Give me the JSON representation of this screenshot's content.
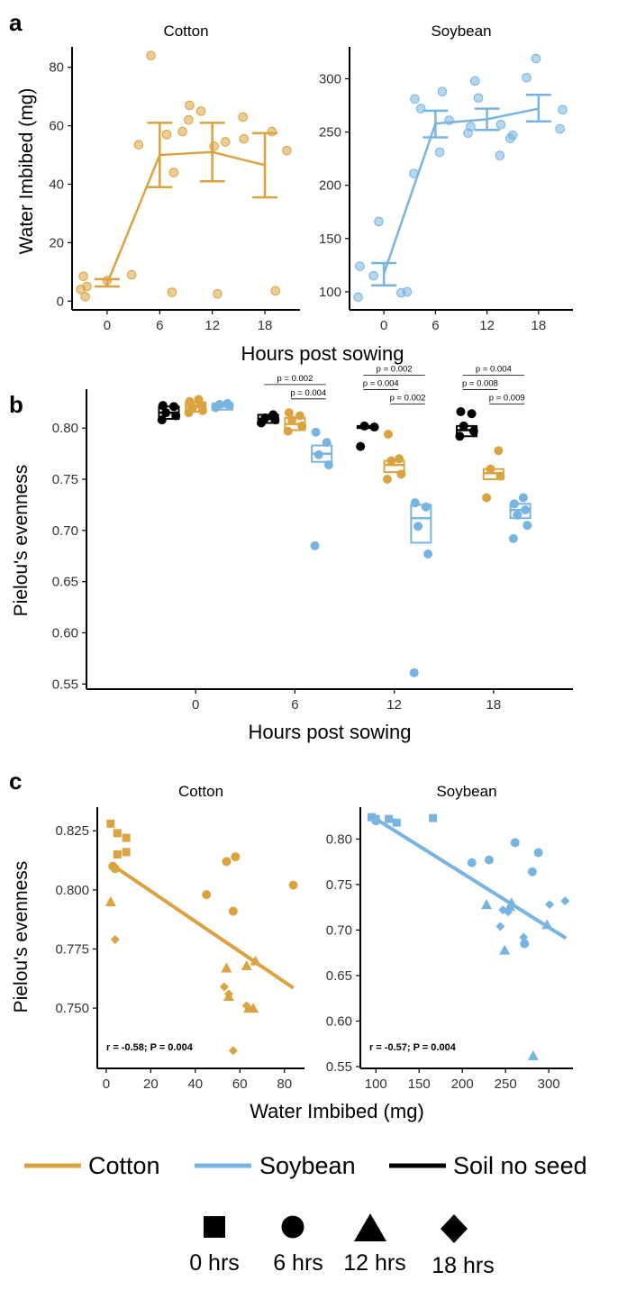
{
  "colors": {
    "cotton": "#dba240",
    "soybean": "#78b4e0",
    "soil": "#000000"
  },
  "panels": {
    "a": {
      "label": "a",
      "xlabel": "Hours post sowing",
      "ylabel": "Water Imbibed (mg)"
    },
    "b": {
      "label": "b",
      "xlabel": "Hours post sowing",
      "ylabel": "Pielou's evenness"
    },
    "c": {
      "label": "c",
      "xlabel": "Water Imbibed (mg)",
      "ylabel": "Pielou's evenness"
    }
  },
  "legend": {
    "lines": [
      {
        "label": "Cotton",
        "color": "#dba240"
      },
      {
        "label": "Soybean",
        "color": "#78b4e0"
      },
      {
        "label": "Soil no seed",
        "color": "#000000"
      }
    ],
    "shapes": [
      {
        "label": "0 hrs",
        "shape": "square"
      },
      {
        "label": "6 hrs",
        "shape": "circle"
      },
      {
        "label": "12 hrs",
        "shape": "triangle"
      },
      {
        "label": "18 hrs",
        "shape": "diamond"
      }
    ]
  },
  "chart_data": [
    {
      "id": "a-cotton",
      "panel": "a",
      "type": "line",
      "title": "Cotton",
      "xlim": [
        -4,
        22
      ],
      "ylim": [
        -3,
        87
      ],
      "xticks": [
        0,
        6,
        12,
        18
      ],
      "yticks": [
        0,
        20,
        40,
        60,
        80
      ],
      "series": [
        {
          "color": "#dba240",
          "mean": [
            [
              0,
              6.0
            ],
            [
              6,
              50.0
            ],
            [
              12,
              51.0
            ],
            [
              18,
              46.5
            ]
          ],
          "error": [
            [
              0,
              5.0,
              7.5
            ],
            [
              6,
              39.0,
              61.0
            ],
            [
              12,
              41.0,
              61.0
            ],
            [
              18,
              35.5,
              57.5
            ]
          ],
          "points": [
            [
              -3.0,
              4.0
            ],
            [
              -2.7,
              8.5
            ],
            [
              -2.5,
              1.5
            ],
            [
              -2.3,
              5.0
            ],
            [
              0.0,
              7.0
            ],
            [
              2.8,
              9.0
            ],
            [
              3.6,
              53.5
            ],
            [
              5.0,
              84.0
            ],
            [
              6.8,
              57.0
            ],
            [
              7.4,
              3.0
            ],
            [
              7.6,
              44.0
            ],
            [
              8.6,
              58.0
            ],
            [
              9.3,
              62.0
            ],
            [
              9.4,
              67.0
            ],
            [
              10.7,
              65.0
            ],
            [
              12.2,
              53.0
            ],
            [
              12.6,
              2.5
            ],
            [
              13.5,
              54.5
            ],
            [
              15.5,
              63.0
            ],
            [
              15.6,
              55.5
            ],
            [
              18.8,
              58.0
            ],
            [
              19.2,
              3.5
            ],
            [
              20.5,
              51.5
            ]
          ]
        }
      ]
    },
    {
      "id": "a-soybean",
      "panel": "a",
      "type": "line",
      "title": "Soybean",
      "xlim": [
        -4,
        22
      ],
      "ylim": [
        83,
        330
      ],
      "xticks": [
        0,
        6,
        12,
        18
      ],
      "yticks": [
        100,
        150,
        200,
        250,
        300
      ],
      "series": [
        {
          "color": "#78b4e0",
          "mean": [
            [
              0,
              117
            ],
            [
              6,
              258
            ],
            [
              12,
              262
            ],
            [
              18,
              272
            ]
          ],
          "error": [
            [
              0,
              106,
              127
            ],
            [
              6,
              245,
              270
            ],
            [
              12,
              252,
              272
            ],
            [
              18,
              260,
              285
            ]
          ],
          "points": [
            [
              -3.0,
              95
            ],
            [
              -2.8,
              124
            ],
            [
              -1.2,
              115
            ],
            [
              -0.6,
              166
            ],
            [
              2.0,
              99
            ],
            [
              2.7,
              100
            ],
            [
              3.5,
              211
            ],
            [
              3.6,
              281
            ],
            [
              4.3,
              272
            ],
            [
              6.5,
              231
            ],
            [
              6.8,
              288
            ],
            [
              7.6,
              261
            ],
            [
              9.8,
              249
            ],
            [
              10.1,
              255
            ],
            [
              10.6,
              298
            ],
            [
              11.0,
              282
            ],
            [
              13.5,
              228
            ],
            [
              13.6,
              257
            ],
            [
              14.7,
              244
            ],
            [
              15.0,
              247
            ],
            [
              16.6,
              301
            ],
            [
              17.7,
              319
            ],
            [
              20.5,
              253
            ],
            [
              20.8,
              271
            ]
          ]
        }
      ]
    },
    {
      "id": "b",
      "panel": "b",
      "type": "box",
      "xlim": [
        -1.1,
        3.8
      ],
      "ylim": [
        0.545,
        0.838
      ],
      "categories": [
        "0",
        "6",
        "12",
        "18"
      ],
      "yticks": [
        0.55,
        0.6,
        0.65,
        0.7,
        0.75,
        0.8
      ],
      "ytick_labels": [
        "0.55",
        "0.60",
        "0.65",
        "0.70",
        "0.75",
        "0.80"
      ],
      "groups": [
        {
          "x": 0,
          "series": "Soil no seed",
          "color": "#000000",
          "q1": 0.809,
          "median": 0.815,
          "q3": 0.821,
          "points": [
            0.808,
            0.812,
            0.815,
            0.821,
            0.822
          ]
        },
        {
          "x": 0,
          "series": "Cotton",
          "color": "#dba240",
          "q1": 0.816,
          "median": 0.821,
          "q3": 0.825,
          "points": [
            0.815,
            0.817,
            0.82,
            0.823,
            0.826,
            0.828
          ]
        },
        {
          "x": 0,
          "series": "Soybean",
          "color": "#78b4e0",
          "q1": 0.818,
          "median": 0.821,
          "q3": 0.824,
          "points": [
            0.82,
            0.822,
            0.823,
            0.824
          ]
        },
        {
          "x": 1,
          "series": "Soil no seed",
          "color": "#000000",
          "q1": 0.805,
          "median": 0.809,
          "q3": 0.813,
          "points": [
            0.805,
            0.808,
            0.81,
            0.813
          ]
        },
        {
          "x": 1,
          "series": "Cotton",
          "color": "#dba240",
          "q1": 0.798,
          "median": 0.804,
          "q3": 0.81,
          "points": [
            0.797,
            0.802,
            0.808,
            0.812,
            0.815
          ]
        },
        {
          "x": 1,
          "series": "Soybean",
          "color": "#78b4e0",
          "q1": 0.767,
          "median": 0.775,
          "q3": 0.783,
          "points": [
            0.685,
            0.764,
            0.774,
            0.786,
            0.796
          ]
        },
        {
          "x": 2,
          "series": "Soil no seed",
          "color": "#000000",
          "q1": 0.8,
          "median": 0.801,
          "q3": 0.802,
          "points": [
            0.782,
            0.801,
            0.802
          ]
        },
        {
          "x": 2,
          "series": "Cotton",
          "color": "#dba240",
          "q1": 0.757,
          "median": 0.764,
          "q3": 0.768,
          "points": [
            0.75,
            0.755,
            0.768,
            0.77,
            0.794
          ]
        },
        {
          "x": 2,
          "series": "Soybean",
          "color": "#78b4e0",
          "q1": 0.688,
          "median": 0.712,
          "q3": 0.725,
          "points": [
            0.561,
            0.677,
            0.704,
            0.723,
            0.727
          ]
        },
        {
          "x": 3,
          "series": "Soil no seed",
          "color": "#000000",
          "q1": 0.792,
          "median": 0.798,
          "q3": 0.802,
          "points": [
            0.792,
            0.797,
            0.802,
            0.814,
            0.816
          ]
        },
        {
          "x": 3,
          "series": "Cotton",
          "color": "#dba240",
          "q1": 0.75,
          "median": 0.756,
          "q3": 0.76,
          "points": [
            0.732,
            0.753,
            0.76,
            0.778
          ]
        },
        {
          "x": 3,
          "series": "Soybean",
          "color": "#78b4e0",
          "q1": 0.712,
          "median": 0.72,
          "q3": 0.726,
          "points": [
            0.692,
            0.705,
            0.715,
            0.72,
            0.726,
            0.732
          ]
        }
      ],
      "comparisons": [
        {
          "x": 1,
          "from": "Soil no seed",
          "to": "Soybean",
          "label": "p = 0.002",
          "level": 2
        },
        {
          "x": 1,
          "from": "Cotton",
          "to": "Soybean",
          "label": "p = 0.004",
          "level": 1
        },
        {
          "x": 2,
          "from": "Soil no seed",
          "to": "Soybean",
          "label": "p = 0.002",
          "level": 3
        },
        {
          "x": 2,
          "from": "Soil no seed",
          "to": "Cotton",
          "label": "p = 0.004",
          "level": 2
        },
        {
          "x": 2,
          "from": "Cotton",
          "to": "Soybean",
          "label": "p = 0.002",
          "level": 1
        },
        {
          "x": 3,
          "from": "Soil no seed",
          "to": "Soybean",
          "label": "p = 0.004",
          "level": 3
        },
        {
          "x": 3,
          "from": "Soil no seed",
          "to": "Cotton",
          "label": "p = 0.008",
          "level": 2
        },
        {
          "x": 3,
          "from": "Cotton",
          "to": "Soybean",
          "label": "p = 0.009",
          "level": 1
        }
      ]
    },
    {
      "id": "c-cotton",
      "panel": "c",
      "type": "scatter",
      "title": "Cotton",
      "xlim": [
        -4,
        89
      ],
      "ylim": [
        0.7245,
        0.835
      ],
      "xticks": [
        0,
        20,
        40,
        60,
        80
      ],
      "yticks": [
        0.75,
        0.775,
        0.8,
        0.825
      ],
      "ytick_labels": [
        "0.750",
        "0.775",
        "0.800",
        "0.825"
      ],
      "annotation": "r = -0.58; P = 0.004",
      "fit": {
        "x": [
          2,
          84
        ],
        "y": [
          0.811,
          0.7585
        ]
      },
      "points": [
        {
          "x": 2,
          "y": 0.828,
          "shape": "square"
        },
        {
          "x": 5,
          "y": 0.824,
          "shape": "square"
        },
        {
          "x": 9,
          "y": 0.822,
          "shape": "square"
        },
        {
          "x": 9,
          "y": 0.816,
          "shape": "square"
        },
        {
          "x": 5,
          "y": 0.815,
          "shape": "square"
        },
        {
          "x": 3,
          "y": 0.81,
          "shape": "circle"
        },
        {
          "x": 4,
          "y": 0.809,
          "shape": "circle"
        },
        {
          "x": 45,
          "y": 0.798,
          "shape": "circle"
        },
        {
          "x": 54,
          "y": 0.812,
          "shape": "circle"
        },
        {
          "x": 58,
          "y": 0.814,
          "shape": "circle"
        },
        {
          "x": 57,
          "y": 0.791,
          "shape": "circle"
        },
        {
          "x": 84,
          "y": 0.802,
          "shape": "circle"
        },
        {
          "x": 2,
          "y": 0.795,
          "shape": "triangle"
        },
        {
          "x": 54,
          "y": 0.767,
          "shape": "triangle"
        },
        {
          "x": 55,
          "y": 0.755,
          "shape": "triangle"
        },
        {
          "x": 63,
          "y": 0.768,
          "shape": "triangle"
        },
        {
          "x": 64,
          "y": 0.75,
          "shape": "triangle"
        },
        {
          "x": 67,
          "y": 0.77,
          "shape": "triangle"
        },
        {
          "x": 66,
          "y": 0.75,
          "shape": "triangle"
        },
        {
          "x": 4,
          "y": 0.779,
          "shape": "diamond"
        },
        {
          "x": 53,
          "y": 0.759,
          "shape": "diamond"
        },
        {
          "x": 55,
          "y": 0.756,
          "shape": "diamond"
        },
        {
          "x": 57,
          "y": 0.732,
          "shape": "diamond"
        },
        {
          "x": 63,
          "y": 0.751,
          "shape": "diamond"
        }
      ]
    },
    {
      "id": "c-soybean",
      "panel": "c",
      "type": "scatter",
      "title": "Soybean",
      "xlim": [
        82,
        328
      ],
      "ylim": [
        0.548,
        0.835
      ],
      "xticks": [
        100,
        150,
        200,
        250,
        300
      ],
      "yticks": [
        0.55,
        0.6,
        0.65,
        0.7,
        0.75,
        0.8
      ],
      "ytick_labels": [
        "0.55",
        "0.60",
        "0.65",
        "0.70",
        "0.75",
        "0.80"
      ],
      "annotation": "r = -0.57; P = 0.004",
      "fit": {
        "x": [
          95,
          320
        ],
        "y": [
          0.825,
          0.691
        ]
      },
      "points": [
        {
          "x": 95,
          "y": 0.824,
          "shape": "square"
        },
        {
          "x": 100,
          "y": 0.822,
          "shape": "square"
        },
        {
          "x": 115,
          "y": 0.822,
          "shape": "square"
        },
        {
          "x": 124,
          "y": 0.818,
          "shape": "square"
        },
        {
          "x": 166,
          "y": 0.823,
          "shape": "square"
        },
        {
          "x": 100,
          "y": 0.82,
          "shape": "circle"
        },
        {
          "x": 211,
          "y": 0.774,
          "shape": "circle"
        },
        {
          "x": 231,
          "y": 0.777,
          "shape": "circle"
        },
        {
          "x": 261,
          "y": 0.796,
          "shape": "circle"
        },
        {
          "x": 281,
          "y": 0.764,
          "shape": "circle"
        },
        {
          "x": 288,
          "y": 0.785,
          "shape": "circle"
        },
        {
          "x": 272,
          "y": 0.685,
          "shape": "circle"
        },
        {
          "x": 228,
          "y": 0.728,
          "shape": "triangle"
        },
        {
          "x": 249,
          "y": 0.678,
          "shape": "triangle"
        },
        {
          "x": 255,
          "y": 0.726,
          "shape": "triangle"
        },
        {
          "x": 257,
          "y": 0.73,
          "shape": "triangle"
        },
        {
          "x": 282,
          "y": 0.562,
          "shape": "triangle"
        },
        {
          "x": 298,
          "y": 0.706,
          "shape": "triangle"
        },
        {
          "x": 244,
          "y": 0.704,
          "shape": "diamond"
        },
        {
          "x": 247,
          "y": 0.722,
          "shape": "diamond"
        },
        {
          "x": 253,
          "y": 0.72,
          "shape": "diamond"
        },
        {
          "x": 271,
          "y": 0.692,
          "shape": "diamond"
        },
        {
          "x": 301,
          "y": 0.728,
          "shape": "diamond"
        },
        {
          "x": 319,
          "y": 0.732,
          "shape": "diamond"
        }
      ]
    }
  ]
}
